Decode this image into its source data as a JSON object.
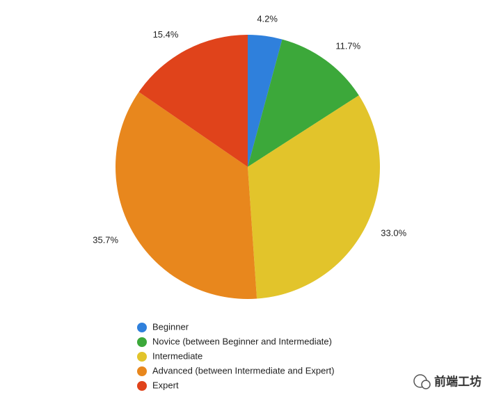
{
  "chart_data": {
    "type": "pie",
    "categories": [
      "Beginner",
      "Novice (between Beginner and Intermediate)",
      "Intermediate",
      "Advanced (between Intermediate and Expert)",
      "Expert"
    ],
    "values": [
      4.2,
      11.7,
      33.0,
      35.7,
      15.4
    ],
    "value_labels": [
      "4.2%",
      "11.7%",
      "33.0%",
      "35.7%",
      "15.4%"
    ],
    "colors": [
      "#2f80dc",
      "#3ca83a",
      "#e2c42b",
      "#e8871d",
      "#e0431b"
    ],
    "legend": "bottom"
  },
  "watermark": "前端工坊"
}
